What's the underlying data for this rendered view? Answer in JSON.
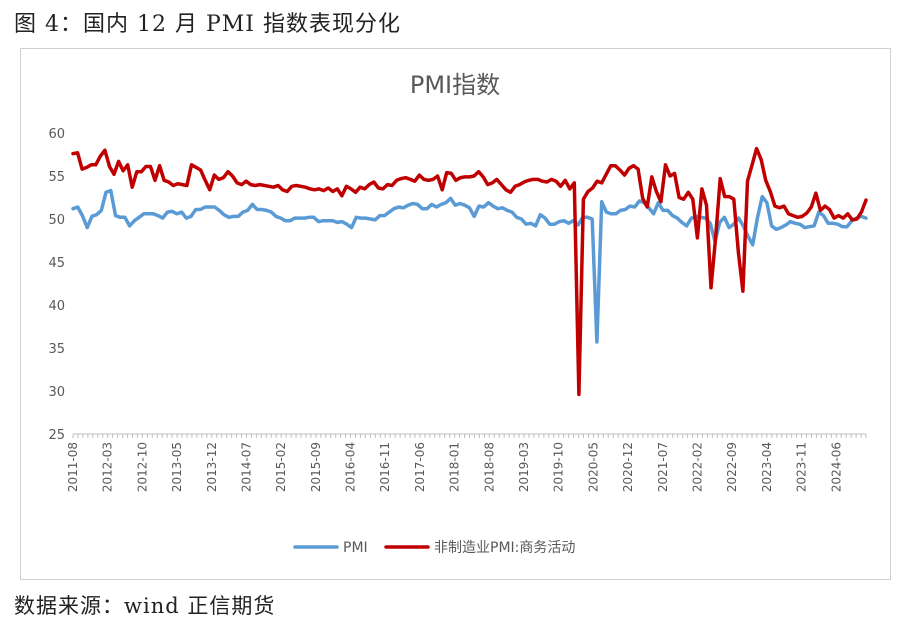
{
  "caption": "图 4：国内 12 月 PMI 指数表现分化",
  "source": "数据来源：wind 正信期货",
  "chart_data": {
    "type": "line",
    "title": "PMI指数",
    "ylim": [
      25,
      60
    ],
    "yticks": [
      "25",
      "30",
      "35",
      "40",
      "45",
      "50",
      "55",
      "60"
    ],
    "xticks": [
      "2011-08",
      "2012-03",
      "2012-10",
      "2013-05",
      "2013-12",
      "2014-07",
      "2015-02",
      "2015-09",
      "2016-04",
      "2016-11",
      "2017-06",
      "2018-01",
      "2018-08",
      "2019-03",
      "2019-10",
      "2020-05",
      "2020-12",
      "2021-07",
      "2022-02",
      "2022-09",
      "2023-04",
      "2023-11",
      "2024-06"
    ],
    "x_start": "2011-08",
    "x_end": "2024-12",
    "legend_position": "bottom",
    "series": [
      {
        "name": "PMI",
        "color": "#5B9BD5",
        "values": [
          51.2,
          51.4,
          50.4,
          49.0,
          50.3,
          50.5,
          51.0,
          53.1,
          53.3,
          50.4,
          50.2,
          50.2,
          49.2,
          49.8,
          50.2,
          50.6,
          50.6,
          50.6,
          50.4,
          50.1,
          50.8,
          50.9,
          50.6,
          50.8,
          50.1,
          50.3,
          51.1,
          51.1,
          51.4,
          51.4,
          51.4,
          51.0,
          50.5,
          50.2,
          50.3,
          50.3,
          50.8,
          51.0,
          51.7,
          51.1,
          51.1,
          51.0,
          50.8,
          50.3,
          50.1,
          49.8,
          49.8,
          50.1,
          50.1,
          50.1,
          50.2,
          50.2,
          49.7,
          49.8,
          49.8,
          49.8,
          49.6,
          49.7,
          49.4,
          49.0,
          50.2,
          50.1,
          50.1,
          50.0,
          49.9,
          50.4,
          50.4,
          50.8,
          51.2,
          51.4,
          51.3,
          51.6,
          51.8,
          51.7,
          51.2,
          51.2,
          51.7,
          51.4,
          51.7,
          51.9,
          52.4,
          51.6,
          51.8,
          51.6,
          51.3,
          50.3,
          51.5,
          51.4,
          51.9,
          51.5,
          51.2,
          51.3,
          51.0,
          50.8,
          50.2,
          50.0,
          49.4,
          49.5,
          49.2,
          50.5,
          50.1,
          49.4,
          49.4,
          49.7,
          49.8,
          49.5,
          49.8,
          49.3,
          50.2,
          50.2,
          50.0,
          35.7,
          52.0,
          50.8,
          50.6,
          50.6,
          51.0,
          51.1,
          51.5,
          51.4,
          52.1,
          51.9,
          51.3,
          50.6,
          51.9,
          51.0,
          51.0,
          50.4,
          50.1,
          49.6,
          49.2,
          50.1,
          50.3,
          50.2,
          50.1,
          49.5,
          47.4,
          49.6,
          50.2,
          49.0,
          49.4,
          50.1,
          49.2,
          48.0,
          47.0,
          50.1,
          52.6,
          51.9,
          49.2,
          48.8,
          49.0,
          49.3,
          49.7,
          49.5,
          49.4,
          49.0,
          49.1,
          49.2,
          50.8,
          50.4,
          49.5,
          49.5,
          49.4,
          49.1,
          49.1,
          49.8,
          50.1,
          50.3,
          50.1
        ],
        "values_note": "read off the chart"
      },
      {
        "name": "非制造业PMI:商务活动",
        "color": "#C00000",
        "values": [
          57.6,
          57.7,
          55.8,
          56.0,
          56.3,
          56.3,
          57.3,
          58.0,
          56.1,
          55.2,
          56.7,
          55.6,
          56.3,
          53.7,
          55.5,
          55.5,
          56.1,
          56.1,
          54.5,
          56.2,
          54.5,
          54.3,
          53.9,
          54.1,
          54.0,
          53.9,
          56.3,
          56.0,
          55.7,
          54.5,
          53.4,
          55.1,
          54.6,
          54.8,
          55.5,
          55.0,
          54.2,
          54.0,
          54.4,
          54.0,
          53.9,
          54.0,
          53.9,
          53.8,
          53.7,
          53.9,
          53.4,
          53.2,
          53.8,
          53.9,
          53.8,
          53.7,
          53.5,
          53.4,
          53.5,
          53.3,
          53.6,
          53.2,
          53.5,
          52.7,
          53.8,
          53.5,
          53.1,
          53.7,
          53.5,
          54.0,
          54.3,
          53.6,
          53.5,
          54.0,
          53.9,
          54.5,
          54.7,
          54.8,
          54.6,
          54.4,
          55.1,
          54.6,
          54.5,
          54.6,
          55.0,
          53.4,
          55.4,
          55.3,
          54.5,
          54.8,
          54.9,
          54.9,
          55.0,
          55.5,
          54.9,
          54.0,
          54.2,
          54.6,
          54.0,
          53.4,
          53.1,
          53.8,
          54.0,
          54.3,
          54.5,
          54.6,
          54.6,
          54.4,
          54.3,
          54.6,
          54.4,
          53.8,
          54.5,
          53.5,
          54.2,
          29.6,
          52.3,
          53.2,
          53.6,
          54.4,
          54.2,
          55.2,
          56.2,
          56.2,
          55.7,
          55.1,
          55.9,
          56.2,
          55.8,
          52.4,
          51.4,
          54.9,
          53.2,
          52.0,
          56.3,
          55.0,
          55.3,
          52.5,
          52.3,
          53.1,
          52.3,
          47.8,
          53.5,
          51.6,
          42.0,
          47.8,
          54.7,
          52.6,
          52.6,
          52.3,
          46.1,
          41.6,
          54.4,
          56.3,
          58.2,
          56.9,
          54.5,
          53.2,
          51.5,
          51.3,
          51.5,
          50.6,
          50.4,
          50.2,
          50.3,
          50.7,
          51.4,
          53.0,
          51.0,
          51.5,
          51.1,
          50.1,
          50.4,
          50.1,
          50.6,
          49.9,
          50.0,
          50.8,
          52.2
        ],
        "values_note": "read off the chart"
      }
    ]
  }
}
